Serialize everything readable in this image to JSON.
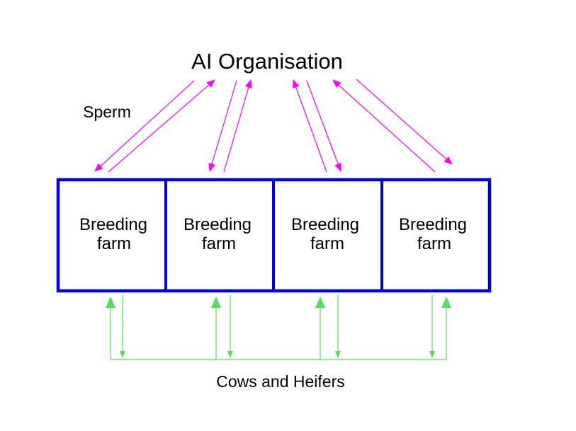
{
  "title": "AI Organisation",
  "sperm_label": "Sperm",
  "farms": [
    {
      "line1": "Breeding",
      "line2": "farm"
    },
    {
      "line1": "Breeding",
      "line2": "farm"
    },
    {
      "line1": "Breeding",
      "line2": "farm"
    },
    {
      "line1": "Breeding",
      "line2": "farm"
    }
  ],
  "bottom_label": "Cows and Heifers",
  "colors": {
    "box_border": "#0000e6",
    "sperm_arrows": "#ff00ff",
    "cow_arrows": "#55dd55"
  }
}
